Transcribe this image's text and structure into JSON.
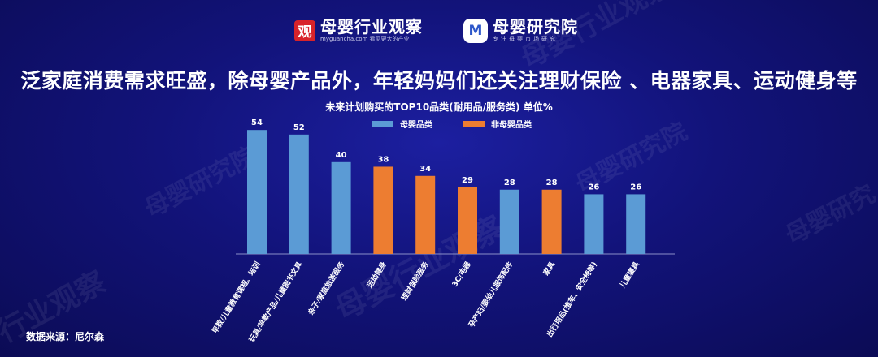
{
  "logos": {
    "guancha_badge": "观",
    "guancha_name": "母婴行业观察",
    "guancha_sub": "myguancha.com 看见更大的产业",
    "yanjiu_badge": "M",
    "yanjiu_name": "母婴研究院",
    "yanjiu_sub": "专注母婴市场研究"
  },
  "headline": "泛家庭消费需求旺盛，除母婴产品外，年轻妈妈们还关注理财保险 、电器家具、运动健身等",
  "source": "数据来源：尼尔森",
  "colors": {
    "muying": "#5b9bd5",
    "fei_muying": "#ed7d31"
  },
  "chart_data": {
    "type": "bar",
    "title": "未来计划购买的TOP10品类(耐用品/服务类) 单位%",
    "legend": [
      {
        "name": "母婴品类",
        "color": "#5b9bd5"
      },
      {
        "name": "非母婴品类",
        "color": "#ed7d31"
      }
    ],
    "legend_position": "top-center",
    "categories": [
      "早教/儿童教育课程、培训",
      "玩具/早教产品/儿童图书文具",
      "亲子/家庭旅游服务",
      "运动健身",
      "理财保险服务",
      "3C/电器",
      "孕产妇/婴幼儿服饰配件",
      "家具",
      "出行用品(推车、安全椅等)",
      "儿童寝具"
    ],
    "values": [
      54,
      52,
      40,
      38,
      34,
      29,
      28,
      28,
      26,
      26
    ],
    "groups": [
      "母婴品类",
      "母婴品类",
      "母婴品类",
      "非母婴品类",
      "非母婴品类",
      "非母婴品类",
      "母婴品类",
      "非母婴品类",
      "母婴品类",
      "母婴品类"
    ],
    "ylim": [
      0,
      60
    ],
    "grid": false
  }
}
